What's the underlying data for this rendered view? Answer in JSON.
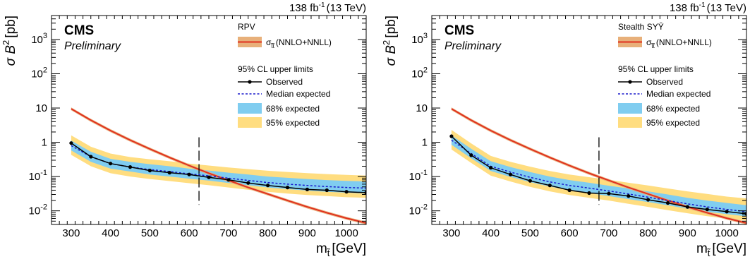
{
  "chart_data": [
    {
      "type": "line",
      "log_y": true,
      "xlim": [
        250,
        1050
      ],
      "ylim": [
        0.004,
        5000
      ],
      "xticks": [
        300,
        400,
        500,
        600,
        700,
        800,
        900,
        1000
      ],
      "xtick_labels": [
        "300",
        "400",
        "500",
        "600",
        "700",
        "800",
        "900",
        "1000"
      ],
      "yticks": [
        0.01,
        0.1,
        1,
        10,
        100,
        1000
      ],
      "xlabel_main": "m",
      "xlabel_sub": "t̃",
      "xlabel_unit": "[GeV]",
      "ylabel_main": "σ B",
      "ylabel_sup": "2",
      "ylabel_unit": "[pb]",
      "lumi_main": "138 fb",
      "lumi_sup": "-1",
      "lumi_energy": "(13 TeV)",
      "experiment": "CMS",
      "status": "Preliminary",
      "model": "RPV",
      "legend": {
        "xsec_sym": "σ",
        "xsec_sub": "t̃t̃",
        "xsec_note": "(NNLO+NNLL)",
        "header": "95% CL upper limits",
        "observed": "Observed",
        "median": "Median expected",
        "band68": "68% expected",
        "band95": "95% expected"
      },
      "x": [
        300,
        350,
        400,
        450,
        500,
        550,
        600,
        650,
        700,
        750,
        800,
        850,
        900,
        950,
        1000,
        1050
      ],
      "observed": [
        0.95,
        0.38,
        0.24,
        0.19,
        0.15,
        0.13,
        0.115,
        0.095,
        0.08,
        0.065,
        0.055,
        0.048,
        0.042,
        0.04,
        0.036,
        0.034
      ],
      "expected": [
        0.8,
        0.38,
        0.24,
        0.19,
        0.16,
        0.14,
        0.12,
        0.105,
        0.09,
        0.077,
        0.067,
        0.06,
        0.055,
        0.051,
        0.048,
        0.046
      ],
      "band68": {
        "low": [
          0.58,
          0.27,
          0.17,
          0.14,
          0.115,
          0.1,
          0.087,
          0.076,
          0.065,
          0.056,
          0.048,
          0.043,
          0.039,
          0.036,
          0.034,
          0.032
        ],
        "high": [
          1.12,
          0.53,
          0.33,
          0.27,
          0.23,
          0.2,
          0.17,
          0.15,
          0.13,
          0.115,
          0.1,
          0.092,
          0.085,
          0.079,
          0.075,
          0.072
        ]
      },
      "band95": {
        "low": [
          0.43,
          0.2,
          0.125,
          0.1,
          0.085,
          0.074,
          0.064,
          0.056,
          0.048,
          0.041,
          0.036,
          0.032,
          0.029,
          0.027,
          0.025,
          0.024
        ],
        "high": [
          1.6,
          0.74,
          0.47,
          0.37,
          0.32,
          0.28,
          0.24,
          0.21,
          0.185,
          0.165,
          0.148,
          0.136,
          0.126,
          0.118,
          0.112,
          0.107
        ]
      },
      "theory": [
        9.5,
        4.4,
        2.2,
        1.16,
        0.64,
        0.36,
        0.21,
        0.125,
        0.077,
        0.048,
        0.031,
        0.02,
        0.013,
        0.0088,
        0.0061,
        0.0044
      ],
      "limit_mass": 625
    },
    {
      "type": "line",
      "log_y": true,
      "xlim": [
        250,
        1050
      ],
      "ylim": [
        0.004,
        5000
      ],
      "xticks": [
        300,
        400,
        500,
        600,
        700,
        800,
        900,
        1000
      ],
      "xtick_labels": [
        "300",
        "400",
        "500",
        "600",
        "700",
        "800",
        "900",
        "1000"
      ],
      "yticks": [
        0.01,
        0.1,
        1,
        10,
        100,
        1000
      ],
      "xlabel_main": "m",
      "xlabel_sub": "t̃",
      "xlabel_unit": "[GeV]",
      "ylabel_main": "σ B",
      "ylabel_sup": "2",
      "ylabel_unit": "[pb]",
      "lumi_main": "138 fb",
      "lumi_sup": "-1",
      "lumi_energy": "(13 TeV)",
      "experiment": "CMS",
      "status": "Preliminary",
      "model": "Stealth SYȲ",
      "legend": {
        "xsec_sym": "σ",
        "xsec_sub": "t̃t̃",
        "xsec_note": "(NNLO+NNLL)",
        "header": "95% CL upper limits",
        "observed": "Observed",
        "median": "Median expected",
        "band68": "68% expected",
        "band95": "95% expected"
      },
      "x": [
        300,
        350,
        400,
        450,
        500,
        550,
        600,
        650,
        700,
        750,
        800,
        850,
        900,
        950,
        1000,
        1050
      ],
      "observed": [
        1.5,
        0.42,
        0.18,
        0.115,
        0.075,
        0.055,
        0.04,
        0.033,
        0.032,
        0.027,
        0.021,
        0.017,
        0.013,
        0.011,
        0.0095,
        0.0082
      ],
      "expected": [
        1.15,
        0.47,
        0.2,
        0.135,
        0.095,
        0.07,
        0.055,
        0.046,
        0.038,
        0.031,
        0.025,
        0.02,
        0.016,
        0.013,
        0.011,
        0.0095
      ],
      "band68": {
        "low": [
          0.85,
          0.34,
          0.145,
          0.098,
          0.069,
          0.051,
          0.04,
          0.033,
          0.027,
          0.022,
          0.018,
          0.0145,
          0.0115,
          0.0094,
          0.008,
          0.0069
        ],
        "high": [
          1.6,
          0.65,
          0.28,
          0.19,
          0.135,
          0.1,
          0.079,
          0.066,
          0.054,
          0.045,
          0.037,
          0.03,
          0.024,
          0.02,
          0.017,
          0.0145
        ]
      },
      "band95": {
        "low": [
          0.62,
          0.25,
          0.106,
          0.072,
          0.05,
          0.037,
          0.029,
          0.024,
          0.02,
          0.016,
          0.013,
          0.0105,
          0.0085,
          0.007,
          0.006,
          0.0052
        ],
        "high": [
          2.3,
          0.93,
          0.4,
          0.27,
          0.195,
          0.145,
          0.115,
          0.096,
          0.08,
          0.066,
          0.055,
          0.045,
          0.037,
          0.031,
          0.026,
          0.023
        ]
      },
      "theory": [
        9.5,
        4.4,
        2.2,
        1.16,
        0.64,
        0.36,
        0.21,
        0.125,
        0.077,
        0.048,
        0.031,
        0.02,
        0.013,
        0.0088,
        0.0061,
        0.0044
      ],
      "limit_mass": 675
    }
  ],
  "colors": {
    "band68": "#80cdf0",
    "band95": "#ffdd80",
    "theory_line": "#e0301e",
    "theory_band": "#e8b07a",
    "observed": "#000000",
    "expected": "#1a1acc",
    "axis": "#000000"
  }
}
